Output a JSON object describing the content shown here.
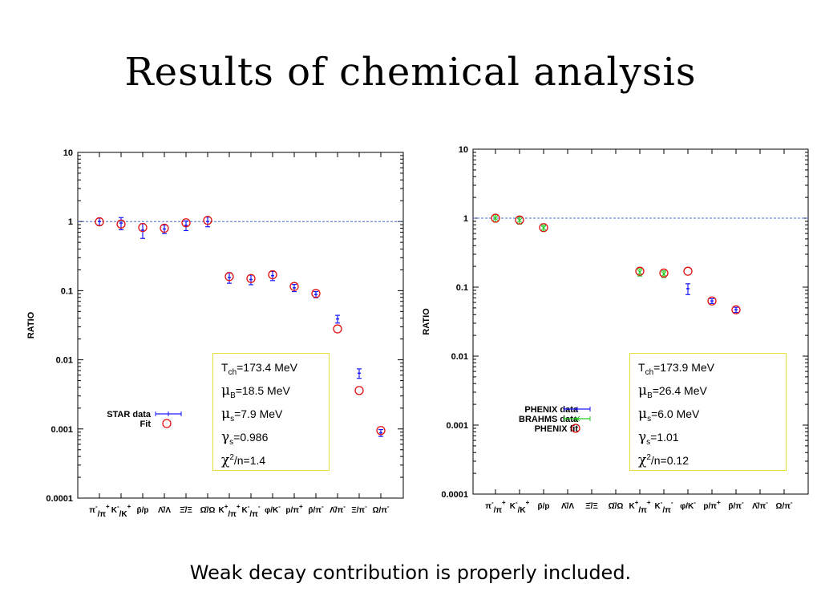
{
  "slide": {
    "title": "Results of chemical analysis",
    "footer": "Weak decay contribution is properly included."
  },
  "colors": {
    "data_blue": "#1a1aff",
    "data_green": "#22cc22",
    "fit_red": "#e01010",
    "reference_line": "#4a6fd0",
    "box_border": "#e8df3a"
  },
  "chart_data": [
    {
      "type": "scatter",
      "ylabel": "RATIO",
      "yscale": "log",
      "ylim": [
        0.0001,
        10
      ],
      "ytick_labels": [
        "10",
        "1",
        "0.1",
        "0.01",
        "0.001",
        "0.0001"
      ],
      "yticks": [
        10,
        1,
        0.1,
        0.01,
        0.001,
        0.0001
      ],
      "reference_line": 1,
      "categories": [
        {
          "base": "π",
          "sup": "-",
          "base2": "/π",
          "sup2": "+"
        },
        {
          "base": "K",
          "sup": "-",
          "base2": "/K",
          "sup2": "+"
        },
        {
          "base": "p̄/p",
          "sup": "",
          "base2": "",
          "sup2": ""
        },
        {
          "base": "Λ̄/Λ",
          "sup": "",
          "base2": "",
          "sup2": ""
        },
        {
          "base": "Ξ̄/Ξ",
          "sup": "",
          "base2": "",
          "sup2": ""
        },
        {
          "base": "Ω̄/Ω",
          "sup": "",
          "base2": "",
          "sup2": ""
        },
        {
          "base": "K",
          "sup": "+",
          "base2": "/π",
          "sup2": "+"
        },
        {
          "base": "K",
          "sup": "-",
          "base2": "/π",
          "sup2": "-"
        },
        {
          "base": "φ/K",
          "sup": "-",
          "base2": "",
          "sup2": ""
        },
        {
          "base": "p/π",
          "sup": "+",
          "base2": "",
          "sup2": ""
        },
        {
          "base": "p̄/π",
          "sup": "-",
          "base2": "",
          "sup2": ""
        },
        {
          "base": "Λ̄/π",
          "sup": "-",
          "base2": "",
          "sup2": ""
        },
        {
          "base": "Ξ/π",
          "sup": "-",
          "base2": "",
          "sup2": ""
        },
        {
          "base": "Ω/π",
          "sup": "-",
          "base2": "",
          "sup2": ""
        }
      ],
      "series": [
        {
          "name": "STAR data",
          "color": "#1a1aff",
          "marker": "errorbar",
          "values": [
            1.0,
            0.95,
            0.75,
            0.78,
            0.88,
            1.0,
            0.155,
            0.145,
            0.165,
            0.11,
            0.088,
            0.039,
            0.0064,
            0.00088
          ],
          "errors_low": [
            0.88,
            0.76,
            0.57,
            0.67,
            0.74,
            0.84,
            0.128,
            0.122,
            0.14,
            0.097,
            0.079,
            0.034,
            0.0054,
            0.00078
          ],
          "errors_high": [
            1.12,
            1.14,
            0.93,
            0.89,
            1.02,
            1.16,
            0.182,
            0.168,
            0.19,
            0.123,
            0.097,
            0.044,
            0.0074,
            0.00098
          ]
        },
        {
          "name": "Fit",
          "color": "#e01010",
          "marker": "open-circle",
          "values": [
            0.99,
            0.92,
            0.82,
            0.8,
            0.96,
            1.04,
            0.16,
            0.15,
            0.17,
            0.115,
            0.091,
            0.028,
            0.0036,
            0.00095
          ]
        }
      ],
      "parameters": {
        "line1_sym": "T",
        "line1_sub": "ch",
        "line1_val": "=173.4 MeV",
        "line2_sym": "μ",
        "line2_sub": "B",
        "line2_val": "=18.5 MeV",
        "line3_sym": "μ",
        "line3_sub": "s",
        "line3_val": "=7.9 MeV",
        "line4_sym": "γ",
        "line4_sub": "s",
        "line4_val": "=0.986",
        "line5_sym": "χ",
        "line5_sup": "2",
        "line5_val": "/n=1.4"
      },
      "legend": [
        "STAR data",
        "Fit"
      ]
    },
    {
      "type": "scatter",
      "ylabel": "RATIO",
      "yscale": "log",
      "ylim": [
        0.0001,
        10
      ],
      "ytick_labels": [
        "10",
        "1",
        "0.1",
        "0.01",
        "0.001",
        "0.0001"
      ],
      "yticks": [
        10,
        1,
        0.1,
        0.01,
        0.001,
        0.0001
      ],
      "reference_line": 1,
      "categories": [
        {
          "base": "π",
          "sup": "-",
          "base2": "/π",
          "sup2": "+"
        },
        {
          "base": "K",
          "sup": "-",
          "base2": "/K",
          "sup2": "+"
        },
        {
          "base": "p̄/p",
          "sup": "",
          "base2": "",
          "sup2": ""
        },
        {
          "base": "Λ̄/Λ",
          "sup": "",
          "base2": "",
          "sup2": ""
        },
        {
          "base": "Ξ̄/Ξ",
          "sup": "",
          "base2": "",
          "sup2": ""
        },
        {
          "base": "Ω̄/Ω",
          "sup": "",
          "base2": "",
          "sup2": ""
        },
        {
          "base": "K",
          "sup": "+",
          "base2": "/π",
          "sup2": "+"
        },
        {
          "base": "K",
          "sup": "-",
          "base2": "/π",
          "sup2": "-"
        },
        {
          "base": "φ/K",
          "sup": "-",
          "base2": "",
          "sup2": ""
        },
        {
          "base": "p/π",
          "sup": "+",
          "base2": "",
          "sup2": ""
        },
        {
          "base": "p̄/π",
          "sup": "-",
          "base2": "",
          "sup2": ""
        },
        {
          "base": "Λ̄/π",
          "sup": "-",
          "base2": "",
          "sup2": ""
        },
        {
          "base": "Ω/π",
          "sup": "-",
          "base2": "",
          "sup2": ""
        }
      ],
      "series": [
        {
          "name": "PHENIX data",
          "color": "#1a1aff",
          "marker": "errorbar",
          "values": [
            null,
            null,
            null,
            null,
            null,
            null,
            null,
            null,
            0.095,
            0.063,
            0.047,
            null,
            null
          ],
          "errors_low": [
            null,
            null,
            null,
            null,
            null,
            null,
            null,
            null,
            0.078,
            0.058,
            0.043,
            null,
            null
          ],
          "errors_high": [
            null,
            null,
            null,
            null,
            null,
            null,
            null,
            null,
            0.112,
            0.068,
            0.051,
            null,
            null
          ]
        },
        {
          "name": "BRAHMS data",
          "color": "#22cc22",
          "marker": "errorbar-cross",
          "values": [
            1.0,
            0.93,
            0.72,
            null,
            null,
            null,
            0.165,
            0.155,
            null,
            null,
            null,
            null,
            null
          ],
          "errors_low": [
            0.88,
            0.82,
            0.65,
            null,
            null,
            null,
            0.145,
            0.138,
            null,
            null,
            null,
            null,
            null
          ],
          "errors_high": [
            1.12,
            1.04,
            0.79,
            null,
            null,
            null,
            0.185,
            0.172,
            null,
            null,
            null,
            null,
            null
          ]
        },
        {
          "name": "PHENIX fit",
          "color": "#e01010",
          "marker": "open-circle",
          "values": [
            1.0,
            0.94,
            0.73,
            null,
            null,
            null,
            0.17,
            0.16,
            0.17,
            0.063,
            0.047,
            null,
            null
          ]
        }
      ],
      "parameters": {
        "line1_sym": "T",
        "line1_sub": "ch",
        "line1_val": "=173.9 MeV",
        "line2_sym": "μ",
        "line2_sub": "B",
        "line2_val": "=26.4 MeV",
        "line3_sym": "μ",
        "line3_sub": "s",
        "line3_val": "=6.0 MeV",
        "line4_sym": "γ",
        "line4_sub": "s",
        "line4_val": "=1.01",
        "line5_sym": "χ",
        "line5_sup": "2",
        "line5_val": "/n=0.12"
      },
      "legend": [
        "PHENIX data",
        "BRAHMS data",
        "PHENIX fit"
      ]
    }
  ]
}
